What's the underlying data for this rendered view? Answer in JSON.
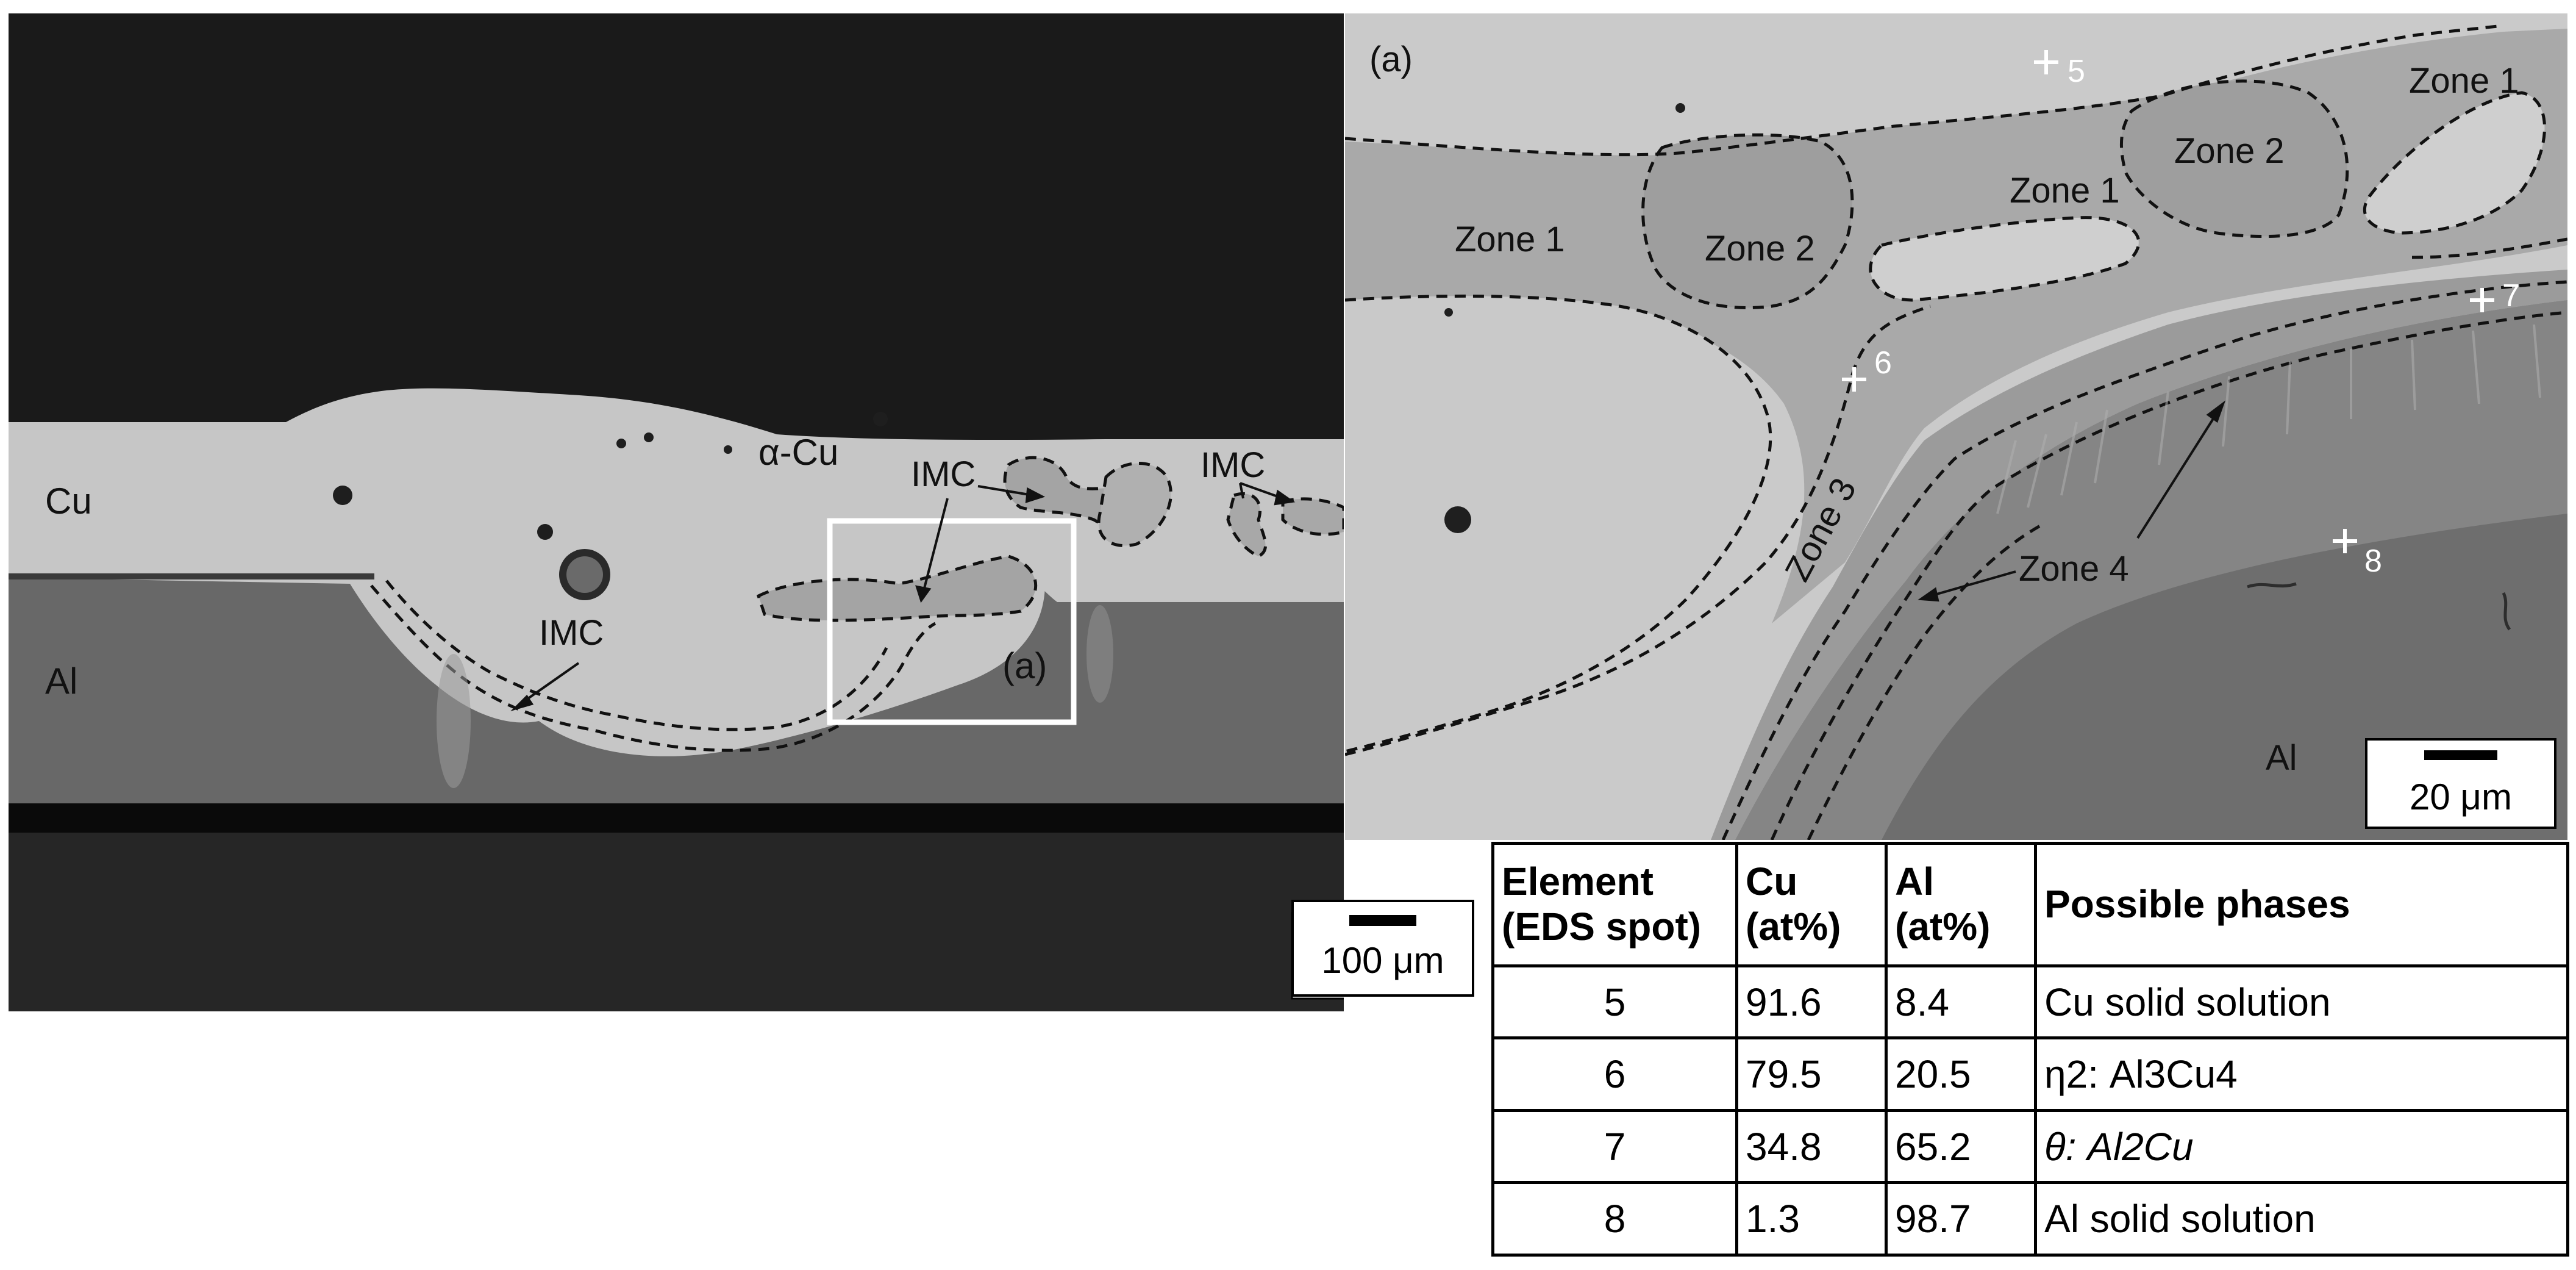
{
  "left_panel": {
    "labels": {
      "cu": "Cu",
      "al": "Al",
      "alpha_cu": "α-Cu",
      "imc_1": "IMC",
      "imc_2": "IMC",
      "imc_3": "IMC",
      "inset_label": "(a)"
    },
    "scale_bar": "100 μm"
  },
  "right_panel": {
    "panel_label": "(a)",
    "zones": {
      "zone1_a": "Zone 1",
      "zone2_a": "Zone 2",
      "zone1_b": "Zone 1",
      "zone2_b": "Zone 2",
      "zone1_c": "Zone 1",
      "zone3": "Zone 3",
      "zone4": "Zone 4"
    },
    "spots": {
      "s5": "5",
      "s6": "6",
      "s7": "7",
      "s8": "8"
    },
    "al_label": "Al",
    "scale_bar": "20 μm"
  },
  "table": {
    "headers": {
      "element": "Element (EDS spot)",
      "cu": "Cu (at%)",
      "al": "Al (at%)",
      "phases": "Possible phases"
    },
    "rows": [
      {
        "spot": "5",
        "cu": "91.6",
        "al": "8.4",
        "phase": "Cu solid solution"
      },
      {
        "spot": "6",
        "cu": "79.5",
        "al": "20.5",
        "phase": "η2: Al3Cu4"
      },
      {
        "spot": "7",
        "cu": "34.8",
        "al": "65.2",
        "phase": "θ: Al2Cu"
      },
      {
        "spot": "8",
        "cu": "1.3",
        "al": "98.7",
        "phase": "Al solid solution"
      }
    ]
  },
  "colors": {
    "background_dark": "#1b1b1b",
    "copper_gray": "#c8c8c8",
    "aluminum_gray": "#6c6c6c",
    "imc_gray": "#9a9a9a",
    "marker_white": "#ffffff"
  }
}
